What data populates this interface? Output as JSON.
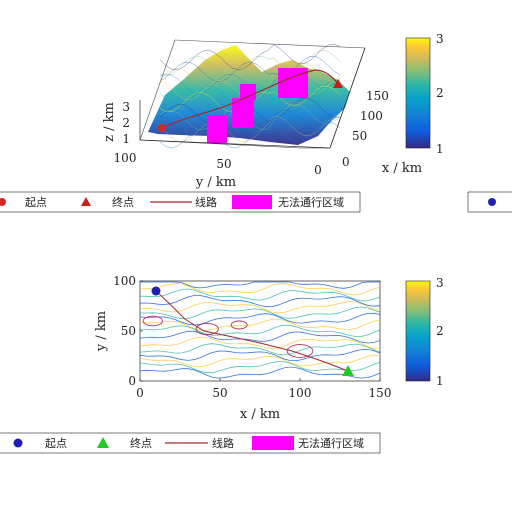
{
  "colors": {
    "parula": [
      "#352a87",
      "#0f5cdd",
      "#1481d6",
      "#06a4ca",
      "#2eb7a4",
      "#87bf77",
      "#d1bb59",
      "#fec832",
      "#f9fb0e"
    ],
    "start_top": "#d62728",
    "end_top": "#c81e1e",
    "start_bottom": "#1f1fb4",
    "end_bottom": "#22cc22",
    "route": "#a0282d",
    "noentry": "#ff00ff",
    "axis": "#222222"
  },
  "chart_data": [
    {
      "type": "surface3d",
      "xlabel": "x / km",
      "ylabel": "y / km",
      "zlabel": "z / km",
      "xticks": [
        "0",
        "50",
        "100",
        "150"
      ],
      "yticks": [
        "100",
        "50",
        "0"
      ],
      "zticks": [
        "1",
        "2",
        "3"
      ],
      "xlim": [
        0,
        170
      ],
      "ylim": [
        0,
        100
      ],
      "zlim": [
        1,
        3
      ],
      "colorbar": {
        "ticks": [
          "1",
          "2",
          "3"
        ],
        "range": [
          1,
          3
        ]
      },
      "start": {
        "x": 5,
        "y": 95,
        "z": 1.3
      },
      "end": {
        "x": 150,
        "y": 10,
        "z": 2.4
      },
      "route": [
        [
          5,
          95,
          1.3
        ],
        [
          30,
          80,
          1.9
        ],
        [
          60,
          60,
          2.2
        ],
        [
          90,
          45,
          2.4
        ],
        [
          120,
          30,
          2.6
        ],
        [
          150,
          10,
          2.4
        ]
      ],
      "no_entry_zones": [
        {
          "x": 55,
          "y": 78,
          "z_top": 1.9
        },
        {
          "x": 90,
          "y": 72,
          "z_top": 2.4
        },
        {
          "x": 110,
          "y": 55,
          "z_top": 2.7
        },
        {
          "x": 125,
          "y": 38,
          "z_top": 3.0
        }
      ],
      "legend": [
        {
          "key": "start",
          "label": "起点"
        },
        {
          "key": "end",
          "label": "终点"
        },
        {
          "key": "route",
          "label": "线路"
        },
        {
          "key": "zone",
          "label": "无法通行区域"
        }
      ]
    },
    {
      "type": "contour",
      "xlabel": "x / km",
      "ylabel": "y / km",
      "xticks": [
        0,
        50,
        100,
        150
      ],
      "yticks": [
        0,
        50,
        100
      ],
      "xlim": [
        0,
        150
      ],
      "ylim": [
        0,
        100
      ],
      "colorbar": {
        "ticks": [
          "1",
          "2",
          "3"
        ],
        "range": [
          1,
          3
        ]
      },
      "start": {
        "x": 10,
        "y": 90
      },
      "end": {
        "x": 130,
        "y": 10
      },
      "route": [
        [
          10,
          90
        ],
        [
          18,
          78
        ],
        [
          28,
          62
        ],
        [
          40,
          50
        ],
        [
          55,
          45
        ],
        [
          75,
          38
        ],
        [
          95,
          30
        ],
        [
          110,
          22
        ],
        [
          122,
          15
        ],
        [
          130,
          10
        ]
      ],
      "no_entry_zones": [
        {
          "x": 8,
          "y": 60,
          "r": 6
        },
        {
          "x": 42,
          "y": 52,
          "r": 7
        },
        {
          "x": 62,
          "y": 56,
          "r": 5
        },
        {
          "x": 100,
          "y": 30,
          "r": 8
        }
      ],
      "legend": [
        {
          "key": "start",
          "label": "起点"
        },
        {
          "key": "end",
          "label": "终点"
        },
        {
          "key": "route",
          "label": "线路"
        },
        {
          "key": "zone",
          "label": "无法通行区域"
        }
      ]
    }
  ]
}
